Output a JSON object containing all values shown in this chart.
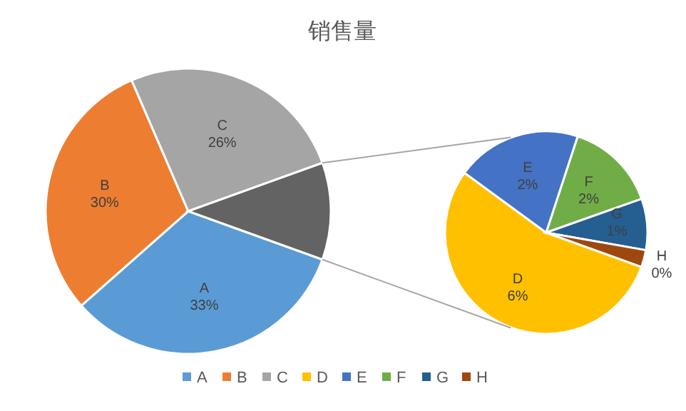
{
  "chart_data": [
    {
      "type": "pie",
      "title": "销售量",
      "categories": [
        "A",
        "B",
        "C",
        null
      ],
      "values": [
        33,
        30,
        26,
        11
      ],
      "value_labels": [
        "33%",
        "30%",
        "26%",
        null
      ],
      "colors": [
        "#5b9bd5",
        "#ed7d31",
        "#a5a5a5",
        "#636363"
      ],
      "legend": "bottom"
    },
    {
      "type": "pie",
      "categories": [
        "D",
        "E",
        "F",
        "G",
        "H"
      ],
      "values": [
        6.0,
        2.2,
        1.6,
        0.9,
        0.3
      ],
      "value_labels": [
        "6%",
        "2%",
        "2%",
        "1%",
        "0%"
      ],
      "colors": [
        "#ffc000",
        "#4472c4",
        "#70ad47",
        "#255e91",
        "#9e480e"
      ],
      "legend": "bottom"
    }
  ]
}
